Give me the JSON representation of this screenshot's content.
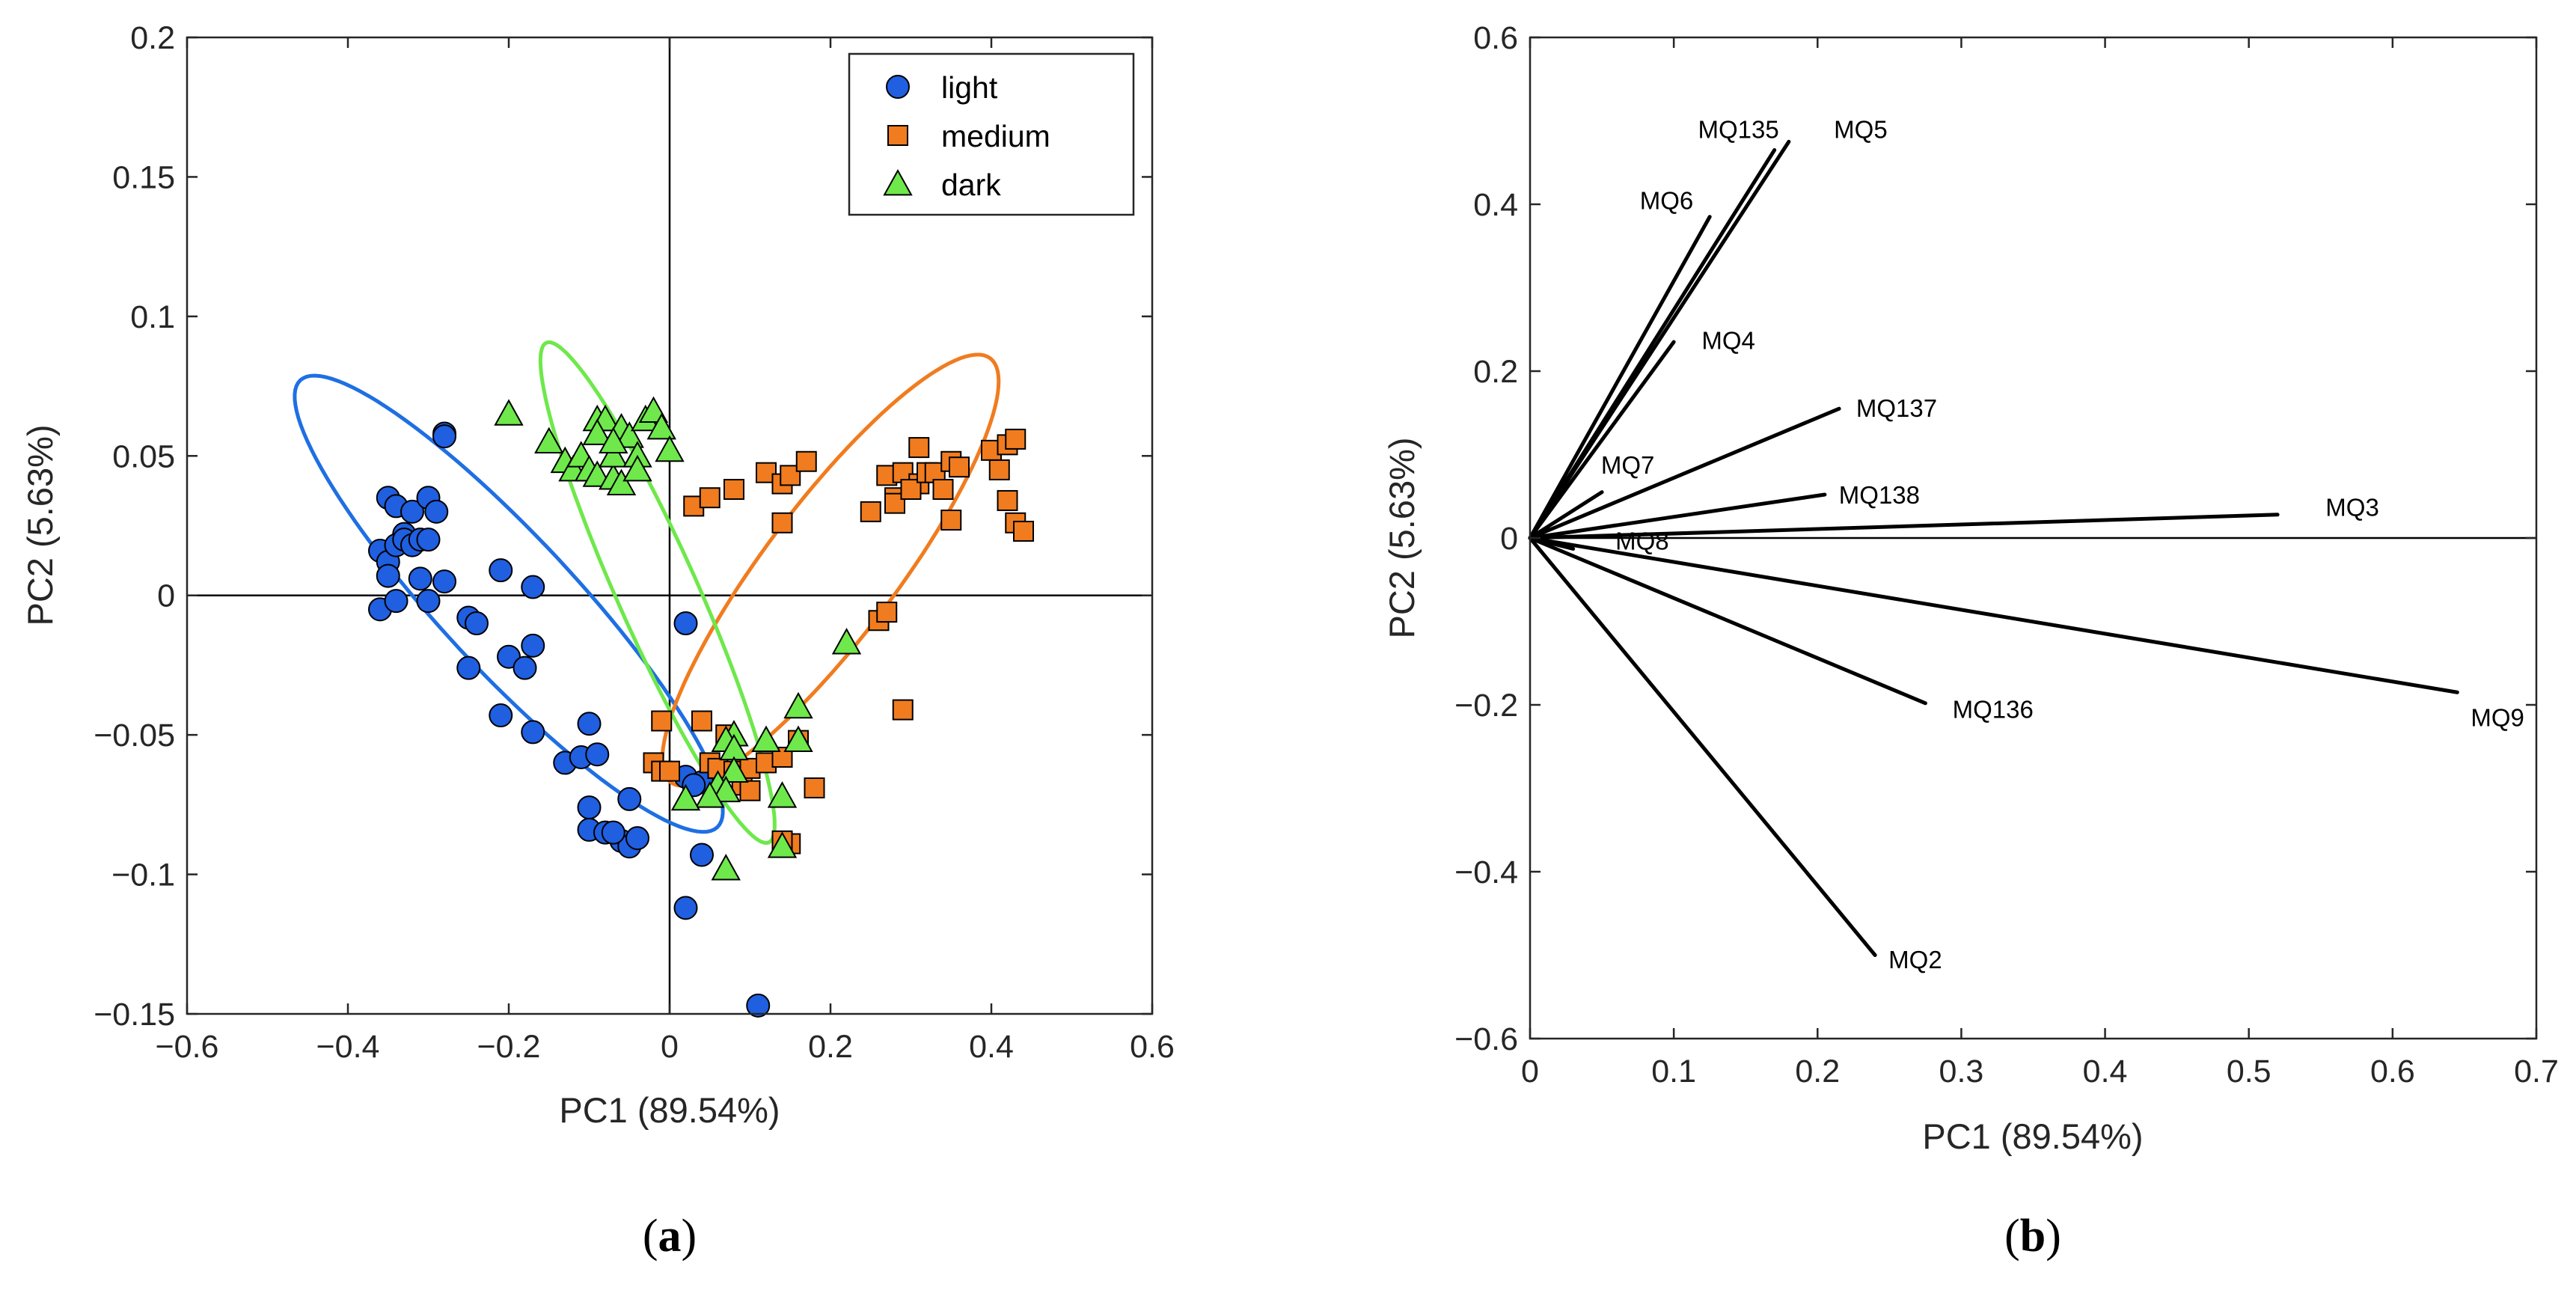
{
  "chart_data": [
    {
      "type": "scatter",
      "panel_label": [
        "(",
        "a",
        ")"
      ],
      "xlabel": "PC1 (89.54%)",
      "ylabel": "PC2 (5.63%)",
      "xlim": [
        -0.6,
        0.6
      ],
      "ylim": [
        -0.15,
        0.2
      ],
      "xticks": [
        -0.6,
        -0.4,
        -0.2,
        0,
        0.2,
        0.4,
        0.6
      ],
      "xtick_labels": [
        "−0.6",
        "−0.4",
        "−0.2",
        "0",
        "0.2",
        "0.4",
        "0.6"
      ],
      "yticks": [
        -0.15,
        -0.1,
        -0.05,
        0,
        0.05,
        0.1,
        0.15,
        0.2
      ],
      "ytick_labels": [
        "−0.15",
        "−0.1",
        "−0.05",
        "0",
        "0.05",
        "0.1",
        "0.15",
        "0.2"
      ],
      "legend_position": "top-right",
      "series": [
        {
          "name": "light",
          "marker": "circle",
          "color": "#1f5fe0",
          "points": [
            [
              -0.36,
              0.016
            ],
            [
              -0.35,
              0.035
            ],
            [
              -0.34,
              0.032
            ],
            [
              -0.33,
              0.022
            ],
            [
              -0.32,
              0.03
            ],
            [
              -0.35,
              0.012
            ],
            [
              -0.34,
              0.018
            ],
            [
              -0.33,
              0.02
            ],
            [
              -0.32,
              0.018
            ],
            [
              -0.31,
              0.02
            ],
            [
              -0.35,
              0.007
            ],
            [
              -0.36,
              -0.005
            ],
            [
              -0.34,
              -0.002
            ],
            [
              -0.31,
              0.006
            ],
            [
              -0.3,
              0.035
            ],
            [
              -0.29,
              0.03
            ],
            [
              -0.3,
              0.02
            ],
            [
              -0.28,
              0.058
            ],
            [
              -0.28,
              0.057
            ],
            [
              -0.3,
              -0.002
            ],
            [
              -0.28,
              0.005
            ],
            [
              -0.25,
              -0.008
            ],
            [
              -0.24,
              -0.01
            ],
            [
              -0.21,
              0.009
            ],
            [
              -0.25,
              -0.026
            ],
            [
              -0.2,
              -0.022
            ],
            [
              -0.18,
              -0.026
            ],
            [
              -0.17,
              -0.018
            ],
            [
              -0.17,
              0.003
            ],
            [
              -0.21,
              -0.043
            ],
            [
              -0.17,
              -0.049
            ],
            [
              -0.13,
              -0.06
            ],
            [
              -0.11,
              -0.058
            ],
            [
              -0.1,
              -0.046
            ],
            [
              -0.09,
              -0.057
            ],
            [
              -0.1,
              -0.076
            ],
            [
              -0.1,
              -0.084
            ],
            [
              -0.08,
              -0.085
            ],
            [
              -0.06,
              -0.088
            ],
            [
              -0.05,
              -0.09
            ],
            [
              -0.04,
              -0.087
            ],
            [
              -0.07,
              -0.085
            ],
            [
              -0.05,
              -0.073
            ],
            [
              0.02,
              -0.01
            ],
            [
              0.02,
              -0.065
            ],
            [
              0.04,
              -0.067
            ],
            [
              0.03,
              -0.068
            ],
            [
              0.04,
              -0.093
            ],
            [
              0.02,
              -0.112
            ],
            [
              0.11,
              -0.147
            ]
          ]
        },
        {
          "name": "medium",
          "marker": "square",
          "color": "#f07c1f",
          "points": [
            [
              0.03,
              0.032
            ],
            [
              0.05,
              0.035
            ],
            [
              0.08,
              0.038
            ],
            [
              0.12,
              0.044
            ],
            [
              0.14,
              0.04
            ],
            [
              0.15,
              0.043
            ],
            [
              0.17,
              0.048
            ],
            [
              0.14,
              0.026
            ],
            [
              0.25,
              0.03
            ],
            [
              0.27,
              0.043
            ],
            [
              0.28,
              0.035
            ],
            [
              0.28,
              0.033
            ],
            [
              0.29,
              0.044
            ],
            [
              0.31,
              0.04
            ],
            [
              0.3,
              0.038
            ],
            [
              0.32,
              0.044
            ],
            [
              0.31,
              0.053
            ],
            [
              0.33,
              0.044
            ],
            [
              0.35,
              0.048
            ],
            [
              0.34,
              0.038
            ],
            [
              0.36,
              0.046
            ],
            [
              0.35,
              0.027
            ],
            [
              0.4,
              0.052
            ],
            [
              0.41,
              0.045
            ],
            [
              0.42,
              0.054
            ],
            [
              0.43,
              0.056
            ],
            [
              0.42,
              0.034
            ],
            [
              0.43,
              0.026
            ],
            [
              0.44,
              0.023
            ],
            [
              0.26,
              -0.009
            ],
            [
              0.27,
              -0.006
            ],
            [
              0.29,
              -0.041
            ],
            [
              -0.01,
              -0.045
            ],
            [
              -0.02,
              -0.06
            ],
            [
              -0.01,
              -0.063
            ],
            [
              0.0,
              -0.063
            ],
            [
              0.04,
              -0.045
            ],
            [
              0.05,
              -0.06
            ],
            [
              0.06,
              -0.062
            ],
            [
              0.07,
              -0.05
            ],
            [
              0.08,
              -0.063
            ],
            [
              0.09,
              -0.068
            ],
            [
              0.1,
              -0.062
            ],
            [
              0.1,
              -0.07
            ],
            [
              0.12,
              -0.06
            ],
            [
              0.14,
              -0.058
            ],
            [
              0.16,
              -0.052
            ],
            [
              0.18,
              -0.069
            ],
            [
              0.15,
              -0.089
            ],
            [
              0.14,
              -0.088
            ]
          ]
        },
        {
          "name": "dark",
          "marker": "triangle",
          "color": "#6ee84b",
          "points": [
            [
              -0.2,
              0.065
            ],
            [
              -0.15,
              0.055
            ],
            [
              -0.13,
              0.048
            ],
            [
              -0.12,
              0.045
            ],
            [
              -0.11,
              0.05
            ],
            [
              -0.09,
              0.063
            ],
            [
              -0.08,
              0.063
            ],
            [
              -0.1,
              0.045
            ],
            [
              -0.09,
              0.043
            ],
            [
              -0.07,
              0.042
            ],
            [
              -0.07,
              0.05
            ],
            [
              -0.06,
              0.06
            ],
            [
              -0.05,
              0.057
            ],
            [
              -0.04,
              0.05
            ],
            [
              -0.03,
              0.063
            ],
            [
              -0.02,
              0.066
            ],
            [
              -0.01,
              0.06
            ],
            [
              0.0,
              0.052
            ],
            [
              -0.06,
              0.04
            ],
            [
              -0.04,
              0.045
            ],
            [
              -0.09,
              0.058
            ],
            [
              -0.07,
              0.055
            ],
            [
              0.22,
              -0.017
            ],
            [
              0.16,
              -0.04
            ],
            [
              0.16,
              -0.052
            ],
            [
              0.12,
              -0.052
            ],
            [
              0.08,
              -0.05
            ],
            [
              0.07,
              -0.052
            ],
            [
              0.08,
              -0.055
            ],
            [
              0.08,
              -0.063
            ],
            [
              0.06,
              -0.068
            ],
            [
              0.07,
              -0.07
            ],
            [
              0.05,
              -0.072
            ],
            [
              0.02,
              -0.073
            ],
            [
              0.14,
              -0.072
            ],
            [
              0.07,
              -0.098
            ],
            [
              0.14,
              -0.09
            ]
          ]
        }
      ],
      "ellipses": [
        {
          "group": "light",
          "center": [
            -0.2,
            -0.003
          ],
          "semi_axes": [
            0.38,
            0.083
          ],
          "angle_deg": -47,
          "color": "#1f6fe3"
        },
        {
          "group": "medium",
          "center": [
            0.2,
            0.009
          ],
          "semi_axes": [
            0.33,
            0.082
          ],
          "angle_deg": 53,
          "color": "#f07c1f"
        },
        {
          "group": "dark",
          "center": [
            -0.015,
            0.001
          ],
          "semi_axes": [
            0.34,
            0.05
          ],
          "angle_deg": -66,
          "color": "#6ee84b"
        }
      ]
    },
    {
      "type": "biplot",
      "panel_label": [
        "(",
        "b",
        ")"
      ],
      "xlabel": "PC1 (89.54%)",
      "ylabel": "PC2 (5.63%)",
      "xlim": [
        0,
        0.7
      ],
      "ylim": [
        -0.6,
        0.6
      ],
      "xticks": [
        0,
        0.1,
        0.2,
        0.3,
        0.4,
        0.5,
        0.6,
        0.7
      ],
      "xtick_labels": [
        "0",
        "0.1",
        "0.2",
        "0.3",
        "0.4",
        "0.5",
        "0.6",
        "0.7"
      ],
      "yticks": [
        -0.6,
        -0.4,
        -0.2,
        0,
        0.2,
        0.4,
        0.6
      ],
      "ytick_labels": [
        "−0.6",
        "−0.4",
        "−0.2",
        "0",
        "0.2",
        "0.4",
        "0.6"
      ],
      "vectors": [
        {
          "name": "MQ135",
          "x": 0.17,
          "y": 0.465,
          "label_at": [
            0.145,
            0.49
          ]
        },
        {
          "name": "MQ5",
          "x": 0.18,
          "y": 0.475,
          "label_at": [
            0.23,
            0.49
          ]
        },
        {
          "name": "MQ6",
          "x": 0.125,
          "y": 0.385,
          "label_at": [
            0.095,
            0.405
          ]
        },
        {
          "name": "MQ4",
          "x": 0.1,
          "y": 0.235,
          "label_at": [
            0.138,
            0.237
          ]
        },
        {
          "name": "MQ137",
          "x": 0.215,
          "y": 0.155,
          "label_at": [
            0.255,
            0.156
          ]
        },
        {
          "name": "MQ7",
          "x": 0.05,
          "y": 0.055,
          "label_at": [
            0.068,
            0.088
          ]
        },
        {
          "name": "MQ138",
          "x": 0.205,
          "y": 0.052,
          "label_at": [
            0.243,
            0.052
          ]
        },
        {
          "name": "MQ3",
          "x": 0.52,
          "y": 0.028,
          "label_at": [
            0.572,
            0.037
          ]
        },
        {
          "name": "MQ8",
          "x": 0.03,
          "y": -0.013,
          "label_at": [
            0.078,
            -0.003
          ]
        },
        {
          "name": "MQ136",
          "x": 0.275,
          "y": -0.198,
          "label_at": [
            0.322,
            -0.205
          ]
        },
        {
          "name": "MQ9",
          "x": 0.645,
          "y": -0.185,
          "label_at": [
            0.673,
            -0.215
          ]
        },
        {
          "name": "MQ2",
          "x": 0.24,
          "y": -0.5,
          "label_at": [
            0.268,
            -0.505
          ]
        }
      ]
    }
  ]
}
